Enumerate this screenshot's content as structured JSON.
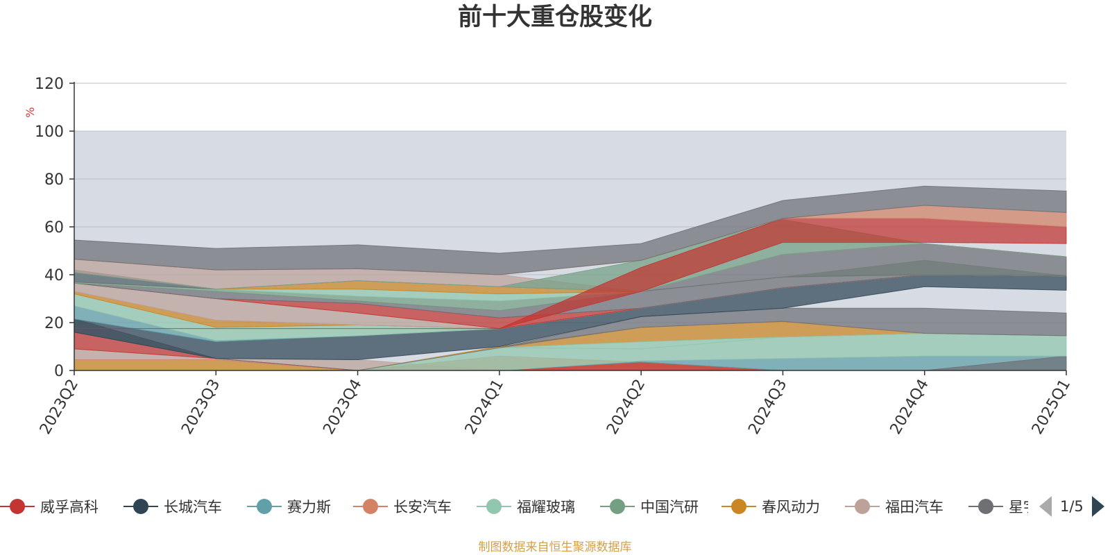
{
  "chart_data": {
    "type": "area",
    "title": "前十大重仓股变化",
    "ylabel": "%",
    "ylim": [
      0,
      120
    ],
    "yticks": [
      0,
      20,
      40,
      60,
      80,
      100,
      120
    ],
    "grid": true,
    "legend_position": "bottom",
    "categories": [
      "2023Q2",
      "2023Q3",
      "2023Q4",
      "2024Q1",
      "2024Q2",
      "2024Q3",
      "2024Q4",
      "2025Q1"
    ],
    "series": [
      {
        "name": "威孚高科",
        "color": "#c23531",
        "values": [
          null,
          null,
          null,
          null,
          null,
          null,
          null,
          null
        ]
      },
      {
        "name": "长城汽车",
        "color": "#2f4554",
        "values": [
          null,
          null,
          null,
          null,
          null,
          null,
          null,
          null
        ]
      },
      {
        "name": "赛力斯",
        "color": "#61a0a8",
        "values": [
          null,
          null,
          null,
          null,
          null,
          null,
          null,
          null
        ]
      },
      {
        "name": "长安汽车",
        "color": "#d48265",
        "values": [
          null,
          null,
          null,
          null,
          null,
          null,
          null,
          null
        ]
      },
      {
        "name": "福耀玻璃",
        "color": "#91c7ae",
        "values": [
          null,
          null,
          null,
          null,
          null,
          null,
          null,
          null
        ]
      },
      {
        "name": "中国汽研",
        "color": "#749f83",
        "values": [
          null,
          null,
          null,
          null,
          null,
          null,
          null,
          null
        ]
      },
      {
        "name": "春风动力",
        "color": "#ca8622",
        "values": [
          null,
          null,
          null,
          null,
          null,
          null,
          null,
          null
        ]
      },
      {
        "name": "福田汽车",
        "color": "#bda29a",
        "values": [
          null,
          null,
          null,
          null,
          null,
          null,
          null,
          null
        ]
      },
      {
        "name": "星宇股份",
        "color": "#6e7074",
        "values": [
          null,
          null,
          null,
          null,
          null,
          null,
          null,
          null
        ]
      }
    ],
    "bands": [
      {
        "color": "#ca8622",
        "lower": [
          0,
          0,
          0,
          0,
          0,
          0,
          0,
          0
        ],
        "upper": [
          4.5,
          4.5,
          0,
          0,
          0,
          0,
          0,
          0
        ]
      },
      {
        "color": "#bda29a",
        "lower": [
          4.5,
          4.5,
          0,
          0,
          0,
          0,
          0,
          0
        ],
        "upper": [
          9,
          5,
          4.5,
          0,
          0,
          0,
          0,
          0
        ]
      },
      {
        "color": "#d48265",
        "lower": [
          4.5,
          4.5,
          0,
          0,
          0,
          0,
          0,
          0
        ],
        "upper": [
          4.5,
          4.5,
          0,
          6,
          3.5,
          0,
          0,
          0
        ]
      },
      {
        "color": "#c23531",
        "lower": [
          9,
          5,
          0,
          0,
          0,
          0,
          0,
          0
        ],
        "upper": [
          16,
          5,
          0,
          0,
          3.5,
          0,
          0,
          0
        ]
      },
      {
        "color": "#61a0a8",
        "lower": [
          0,
          0,
          0,
          0,
          3.5,
          0,
          0,
          0
        ],
        "upper": [
          0,
          0,
          0,
          0,
          4,
          5,
          6,
          6
        ]
      },
      {
        "color": "#6e7074",
        "lower": [
          0,
          0,
          0,
          0,
          0,
          0,
          0,
          0
        ],
        "upper": [
          0,
          0,
          0,
          0,
          0,
          0,
          0,
          6
        ]
      },
      {
        "color": "#91c7ae",
        "lower": [
          0,
          0,
          0,
          0,
          4,
          5,
          6,
          6
        ],
        "upper": [
          0,
          0,
          0,
          9.5,
          9,
          14,
          15.5,
          14.5
        ]
      },
      {
        "color": "#ca8622",
        "lower": [
          0,
          0,
          0,
          9.5,
          12,
          14,
          15.5,
          14.5
        ],
        "upper": [
          0,
          0,
          0,
          10,
          18,
          20.5,
          15.5,
          14.5
        ]
      },
      {
        "color": "#91c7ae",
        "lower": [
          0,
          0,
          0,
          9.5,
          9,
          14,
          15.5,
          14.5
        ],
        "upper": [
          0,
          0,
          0,
          9.5,
          12,
          14,
          15.5,
          14.5
        ]
      },
      {
        "color": "#6e7074",
        "lower": [
          16,
          5,
          0,
          9.5,
          18,
          20.5,
          15.5,
          14.5
        ],
        "upper": [
          21.5,
          5,
          0,
          9.5,
          22.5,
          26,
          26,
          24
        ]
      },
      {
        "color": "#2f4554",
        "lower": [
          16,
          5,
          4.5,
          10,
          22.5,
          26,
          35,
          33.5
        ],
        "upper": [
          21.5,
          12,
          14.5,
          17.5,
          26,
          34.5,
          40,
          39.5
        ]
      },
      {
        "color": "#61a0a8",
        "lower": [
          21.5,
          12,
          14.5,
          17.5,
          26,
          34.5,
          40,
          39.5
        ],
        "upper": [
          27,
          12.5,
          14.5,
          17.5,
          26,
          34.5,
          40,
          39.5
        ]
      },
      {
        "color": "#91c7ae",
        "lower": [
          27,
          12.5,
          14.5,
          17.5,
          26,
          34.5,
          40,
          39.5
        ],
        "upper": [
          32,
          18,
          19,
          17.5,
          26,
          34.5,
          40,
          39.5
        ]
      },
      {
        "color": "#ca8622",
        "lower": [
          32,
          18,
          19,
          17.5,
          26,
          34.5,
          40,
          39.5
        ],
        "upper": [
          33,
          21,
          19,
          17.5,
          26,
          34.5,
          40,
          39.5
        ]
      },
      {
        "color": "#d48265",
        "lower": [
          33,
          21,
          19,
          17.5,
          26,
          34.5,
          40,
          39.5
        ],
        "upper": [
          33,
          21,
          19,
          17.5,
          26,
          34.5,
          40,
          39.5
        ]
      },
      {
        "color": "#bda29a",
        "lower": [
          33,
          21,
          19,
          17.5,
          26,
          34.5,
          40,
          39.5
        ],
        "upper": [
          36.5,
          30,
          24,
          17.5,
          26,
          34.5,
          40,
          39.5
        ]
      },
      {
        "color": "#c23531",
        "lower": [
          36.5,
          30,
          24,
          17.5,
          26,
          34.5,
          40,
          39.5
        ],
        "upper": [
          36.5,
          30,
          28,
          22,
          26,
          34.5,
          40,
          39.5
        ]
      },
      {
        "color": "#6e7074",
        "lower": [
          36.5,
          30,
          28,
          22,
          26,
          34.5,
          40,
          39.5
        ],
        "upper": [
          36.5,
          33,
          29,
          25,
          33,
          39,
          40,
          39.5
        ]
      },
      {
        "color": "#749f83",
        "lower": [
          36.5,
          33,
          29,
          25,
          33,
          39,
          40,
          39.5
        ],
        "upper": [
          37,
          34,
          31,
          29,
          33,
          39,
          46,
          39.5
        ]
      },
      {
        "color": "#91c7ae",
        "lower": [
          37,
          34,
          31,
          29,
          33,
          39,
          40,
          39.5
        ],
        "upper": [
          37,
          34,
          34,
          32,
          33,
          39,
          40,
          39.5
        ]
      },
      {
        "color": "#ca8622",
        "lower": [
          37,
          34,
          34,
          32,
          33,
          39,
          40,
          39.5
        ],
        "upper": [
          37,
          34,
          37.5,
          35,
          33,
          39,
          40,
          39.5
        ]
      },
      {
        "color": "#61a0a8",
        "lower": [
          37,
          34,
          37.5,
          35,
          33,
          39,
          40,
          39.5
        ],
        "upper": [
          41,
          34,
          37.5,
          35,
          33,
          39,
          40,
          39.5
        ]
      },
      {
        "color": "#6e7074",
        "lower": [
          37,
          34,
          37.5,
          35,
          33,
          39,
          40,
          39.5
        ],
        "upper": [
          42,
          34,
          37.5,
          35,
          33,
          48.5,
          53,
          47.5
        ]
      },
      {
        "color": "#bda29a",
        "lower": [
          41,
          34,
          37.5,
          35,
          33,
          48.5,
          53,
          47.5
        ],
        "upper": [
          46.5,
          42,
          42.5,
          40,
          33,
          48.5,
          53,
          47.5
        ]
      },
      {
        "color": "#749f83",
        "lower": [
          41,
          34,
          37.5,
          35,
          33,
          48.5,
          53,
          47.5
        ],
        "upper": [
          41,
          34,
          37.5,
          35,
          46,
          63,
          53,
          47.5
        ]
      },
      {
        "color": "#c23531",
        "lower": [
          17.5,
          17.5,
          17.5,
          17.5,
          33,
          53.5,
          53.5,
          53
        ],
        "upper": [
          17.5,
          17.5,
          17.5,
          17.5,
          43,
          63.5,
          63.5,
          60
        ]
      },
      {
        "color": "#d48265",
        "lower": [
          46.5,
          42,
          42.5,
          40,
          46,
          63.5,
          63.5,
          60
        ],
        "upper": [
          46.5,
          42,
          42.5,
          40,
          46,
          63.5,
          69,
          66
        ]
      },
      {
        "color": "#6e7074",
        "lower": [
          46.5,
          42,
          42.5,
          40,
          46,
          63.5,
          69,
          66
        ],
        "upper": [
          54.5,
          51,
          52.5,
          49,
          53,
          71,
          77,
          75
        ]
      }
    ]
  },
  "legend": {
    "items": [
      {
        "name": "威孚高科",
        "color": "#c23531"
      },
      {
        "name": "长城汽车",
        "color": "#2f4554"
      },
      {
        "name": "赛力斯",
        "color": "#61a0a8"
      },
      {
        "name": "长安汽车",
        "color": "#d48265"
      },
      {
        "name": "福耀玻璃",
        "color": "#91c7ae"
      },
      {
        "name": "中国汽研",
        "color": "#749f83"
      },
      {
        "name": "春风动力",
        "color": "#ca8622"
      },
      {
        "name": "福田汽车",
        "color": "#bda29a"
      },
      {
        "name": "星宇股份",
        "color": "#6e7074"
      }
    ],
    "page_indicator": "1/5"
  },
  "footer": {
    "source": "制图数据来自恒生聚源数据库"
  }
}
